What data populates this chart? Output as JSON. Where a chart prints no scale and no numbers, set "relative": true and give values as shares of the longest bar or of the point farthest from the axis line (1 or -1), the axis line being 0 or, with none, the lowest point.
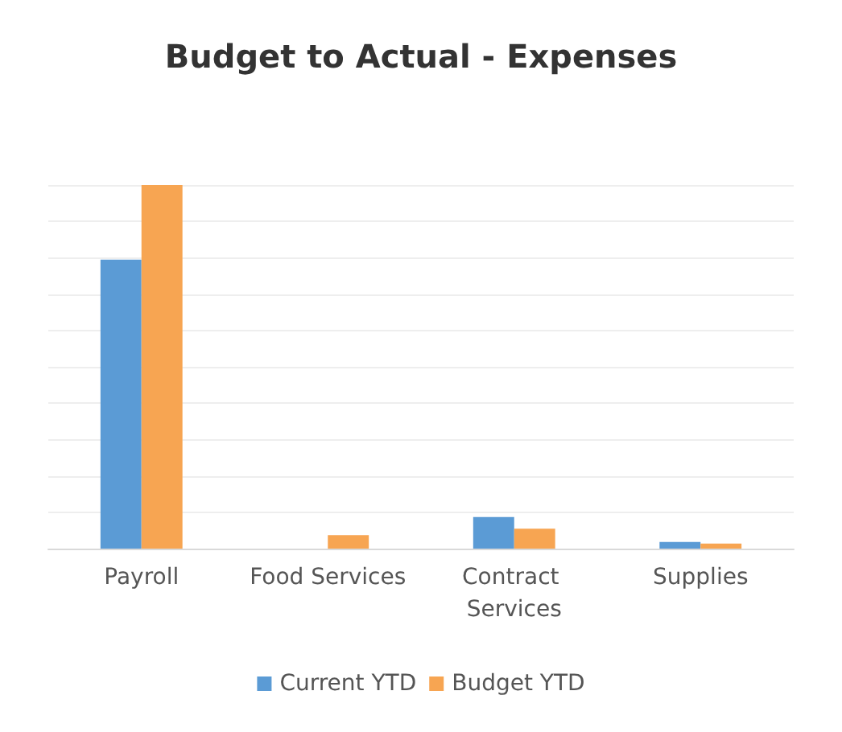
{
  "chart_data": {
    "type": "bar",
    "title": "Budget to Actual - Expenses",
    "categories": [
      "Payroll",
      "Food Services",
      "Contract Services",
      "Supplies"
    ],
    "relative": true,
    "grid": "y",
    "legend": "bottom",
    "series": [
      {
        "name": "Current YTD",
        "color": "#5b9bd5",
        "values": [
          0.795,
          0,
          0.087,
          0.018
        ]
      },
      {
        "name": "Budget YTD",
        "color": "#f7a552",
        "values": [
          1,
          0.037,
          0.055,
          0.014
        ]
      }
    ]
  }
}
